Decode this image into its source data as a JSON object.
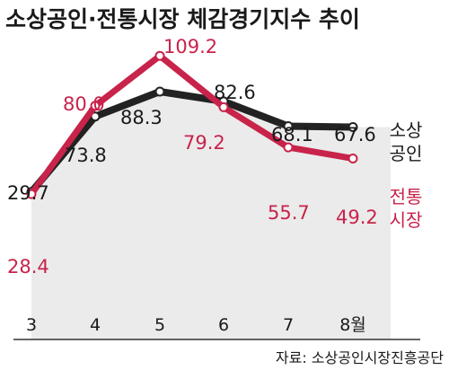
{
  "chart_data": {
    "type": "line",
    "title": "소상공인·전통시장 체감경기지수 추이",
    "categories": [
      "3",
      "4",
      "5",
      "6",
      "7",
      "8월"
    ],
    "series": [
      {
        "name": "소상공인",
        "legend_lines": [
          "소상",
          "공인"
        ],
        "values": [
          29.7,
          73.8,
          88.3,
          82.6,
          68.1,
          67.6
        ],
        "color": "#222222"
      },
      {
        "name": "전통시장",
        "legend_lines": [
          "전통",
          "시장"
        ],
        "values": [
          28.4,
          80.0,
          109.2,
          79.2,
          55.7,
          49.2
        ],
        "color": "#c8234a"
      }
    ],
    "value_labels": [
      [
        "29.7",
        "73.8",
        "88.3",
        "82.6",
        "68.1",
        "67.6"
      ],
      [
        "28.4",
        "80.0",
        "109.2",
        "79.2",
        "55.7",
        "49.2"
      ]
    ],
    "fill_color": "#ebebeb",
    "source": "자료: 소상공인시장진흥공단"
  }
}
